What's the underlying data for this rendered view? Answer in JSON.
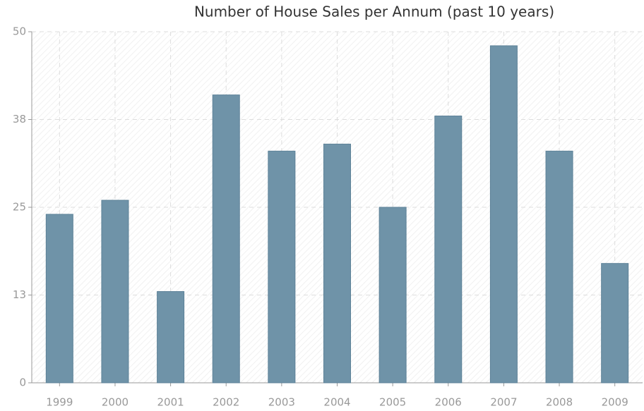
{
  "chart_data": {
    "type": "bar",
    "title": "Number of House Sales per Annum (past 10 years)",
    "categories": [
      "1999",
      "2000",
      "2001",
      "2002",
      "2003",
      "2004",
      "2005",
      "2006",
      "2007",
      "2008",
      "2009"
    ],
    "values": [
      24,
      26,
      13,
      41,
      33,
      34,
      25,
      38,
      48,
      33,
      17
    ],
    "color": "#6f93a8",
    "ylim": [
      0,
      50
    ],
    "yticks": [
      0,
      {
        "value": 12.5,
        "label": "13"
      },
      25,
      {
        "value": 37.5,
        "label": "38"
      },
      50
    ],
    "grid": true
  }
}
